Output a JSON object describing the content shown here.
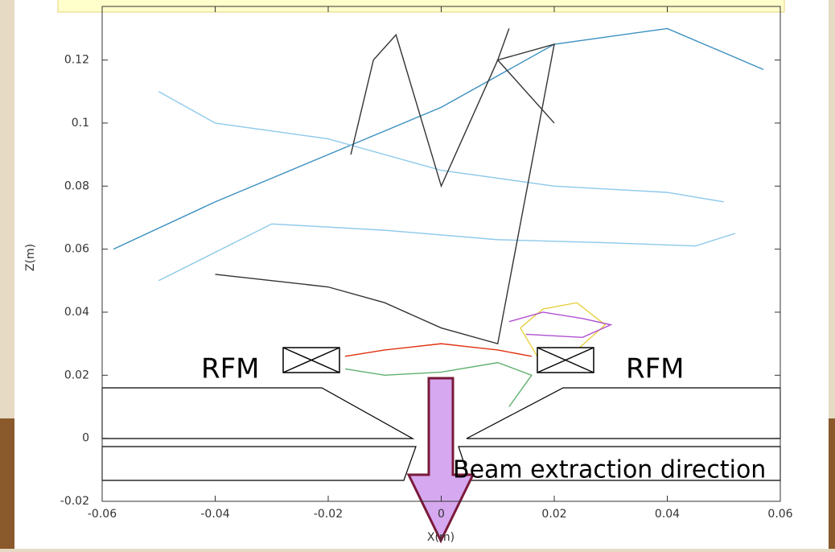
{
  "chart_data": {
    "type": "line",
    "x_label": "X(m)",
    "y_label": "Z(m)",
    "xlim": [
      -0.06,
      0.06
    ],
    "ylim": [
      -0.02,
      0.137
    ],
    "xticks": [
      -0.06,
      -0.04,
      -0.02,
      0,
      0.02,
      0.04,
      0.06
    ],
    "yticks": [
      -0.02,
      0,
      0.02,
      0.04,
      0.06,
      0.08,
      0.1,
      0.12
    ],
    "annotations": [
      "RFM",
      "RFM",
      "Beam extraction direction"
    ],
    "series": [
      {
        "color": "#3a8fc0",
        "x": [
          -0.058,
          -0.04,
          -0.02,
          0.0,
          0.02,
          0.04,
          0.057
        ],
        "values": [
          0.06,
          0.075,
          0.09,
          0.105,
          0.125,
          0.13,
          0.117
        ]
      },
      {
        "color": "#8ec9ea",
        "x": [
          -0.05,
          -0.04,
          -0.02,
          0.0,
          0.02,
          0.04,
          0.05
        ],
        "values": [
          0.11,
          0.1,
          0.095,
          0.085,
          0.08,
          0.078,
          0.075
        ]
      },
      {
        "color": "#8ec9ea",
        "x": [
          -0.05,
          -0.03,
          -0.01,
          0.01,
          0.03,
          0.045,
          0.052
        ],
        "values": [
          0.05,
          0.068,
          0.066,
          0.063,
          0.062,
          0.061,
          0.065
        ]
      },
      {
        "color": "#333333",
        "x": [
          -0.04,
          -0.02,
          -0.01,
          0.0,
          0.01,
          0.02,
          0.01,
          0.02
        ],
        "values": [
          0.052,
          0.048,
          0.043,
          0.035,
          0.03,
          0.125,
          0.12,
          0.1
        ]
      },
      {
        "color": "#333333",
        "x": [
          -0.016,
          -0.012,
          -0.008,
          -0.005,
          0.0,
          0.005,
          0.01,
          0.012
        ],
        "values": [
          0.09,
          0.12,
          0.128,
          0.11,
          0.08,
          0.1,
          0.12,
          0.13
        ]
      },
      {
        "color": "#e03010",
        "x": [
          -0.017,
          -0.01,
          -0.005,
          0.0,
          0.005,
          0.01,
          0.016
        ],
        "values": [
          0.026,
          0.028,
          0.029,
          0.03,
          0.029,
          0.028,
          0.026
        ]
      },
      {
        "color": "#e8d040",
        "x": [
          0.014,
          0.018,
          0.024,
          0.029,
          0.024,
          0.017,
          0.014
        ],
        "values": [
          0.035,
          0.041,
          0.043,
          0.036,
          0.028,
          0.026,
          0.035
        ]
      },
      {
        "color": "#b050d0",
        "x": [
          0.012,
          0.018,
          0.025,
          0.03,
          0.025,
          0.015
        ],
        "values": [
          0.037,
          0.04,
          0.038,
          0.036,
          0.032,
          0.033
        ]
      },
      {
        "color": "#60b070",
        "x": [
          -0.017,
          -0.01,
          0.0,
          0.01,
          0.016,
          0.012
        ],
        "values": [
          0.022,
          0.02,
          0.021,
          0.024,
          0.02,
          0.01
        ]
      }
    ]
  }
}
